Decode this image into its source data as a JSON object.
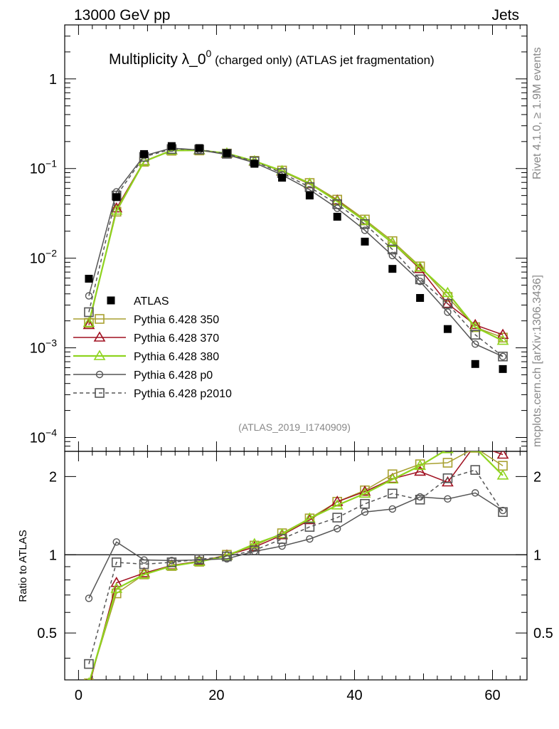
{
  "header": {
    "left": "13000 GeV pp",
    "right": "Jets"
  },
  "side": {
    "rivet": "Rivet 4.1.0, ≥ 1.9M events",
    "mcplots": "mcplots.cern.ch [arXiv:1306.3436]"
  },
  "chart_data": {
    "type": "line",
    "title": "Multiplicity λ_0",
    "title_sup": "0",
    "title_suffix": " (charged only) (ATLAS jet fragmentation)",
    "watermark": "(ATLAS_2019_I1740909)",
    "ratio_ylabel": "Ratio to ATLAS",
    "xlim": [
      -2,
      65
    ],
    "ylim": [
      7e-05,
      4
    ],
    "ratio_ylim": [
      0.33,
      2.5
    ],
    "yscale": "log",
    "ratio_yscale": "log",
    "x_ticks": [
      0,
      20,
      40,
      60
    ],
    "y_tick_labels": [
      {
        "value": 1,
        "base": "1",
        "exp": ""
      },
      {
        "value": 0.1,
        "base": "10",
        "exp": "−1"
      },
      {
        "value": 0.01,
        "base": "10",
        "exp": "−2"
      },
      {
        "value": 0.001,
        "base": "10",
        "exp": "−3"
      },
      {
        "value": 0.0001,
        "base": "10",
        "exp": "−4"
      }
    ],
    "ratio_tick_labels": [
      {
        "value": 0.5,
        "label": "0.5"
      },
      {
        "value": 1,
        "label": "1"
      },
      {
        "value": 2,
        "label": "2"
      }
    ],
    "x": [
      1.5,
      5.5,
      9.5,
      13.5,
      17.5,
      21.5,
      25.5,
      29.5,
      33.5,
      37.5,
      41.5,
      45.5,
      49.5,
      53.5,
      57.5,
      61.5
    ],
    "data": {
      "name": "ATLAS",
      "values": [
        0.0059,
        0.048,
        0.145,
        0.178,
        0.169,
        0.148,
        0.113,
        0.079,
        0.05,
        0.029,
        0.0153,
        0.0076,
        0.0036,
        0.00162,
        0.00066,
        0.00058
      ]
    },
    "series": [
      {
        "name": "Pythia 6.428 350",
        "color": "#a8a030",
        "marker": "square",
        "dashed": false,
        "values": [
          0.0019,
          0.033,
          0.119,
          0.158,
          0.159,
          0.147,
          0.122,
          0.095,
          0.069,
          0.045,
          0.027,
          0.0155,
          0.0081,
          0.0037,
          0.0017,
          0.0013
        ],
        "ratio": [
          0.32,
          0.71,
          0.84,
          0.905,
          0.94,
          1.0,
          1.085,
          1.21,
          1.38,
          1.6,
          1.77,
          2.04,
          2.23,
          2.26,
          2.58,
          2.2
        ]
      },
      {
        "name": "Pythia 6.428 370",
        "color": "#a01020",
        "marker": "triangle",
        "dashed": false,
        "values": [
          0.0018,
          0.036,
          0.121,
          0.16,
          0.16,
          0.147,
          0.12,
          0.093,
          0.067,
          0.044,
          0.026,
          0.0148,
          0.0076,
          0.0031,
          0.0018,
          0.0014
        ],
        "ratio": [
          0.31,
          0.78,
          0.85,
          0.91,
          0.945,
          0.995,
          1.07,
          1.19,
          1.36,
          1.6,
          1.75,
          1.96,
          2.09,
          1.9,
          2.65,
          2.43
        ]
      },
      {
        "name": "Pythia 6.428 380",
        "color": "#8fd41f",
        "marker": "triangle",
        "dashed": false,
        "values": [
          0.0019,
          0.034,
          0.12,
          0.159,
          0.16,
          0.148,
          0.121,
          0.094,
          0.068,
          0.043,
          0.026,
          0.0148,
          0.0079,
          0.0041,
          0.0017,
          0.0012
        ],
        "ratio": [
          0.32,
          0.74,
          0.84,
          0.905,
          0.94,
          0.99,
          1.1,
          1.2,
          1.38,
          1.55,
          1.72,
          1.95,
          2.2,
          2.55,
          2.58,
          2.02
        ]
      },
      {
        "name": "Pythia 6.428 p0",
        "color": "#555555",
        "marker": "circle",
        "dashed": false,
        "values": [
          0.0038,
          0.055,
          0.139,
          0.169,
          0.161,
          0.143,
          0.116,
          0.085,
          0.058,
          0.036,
          0.0205,
          0.0107,
          0.0055,
          0.0025,
          0.0011,
          0.0008
        ],
        "ratio": [
          0.68,
          1.12,
          0.955,
          0.95,
          0.955,
          0.965,
          1.03,
          1.08,
          1.15,
          1.26,
          1.46,
          1.5,
          1.67,
          1.64,
          1.73,
          1.48
        ]
      },
      {
        "name": "Pythia 6.428 p2010",
        "color": "#555555",
        "marker": "square",
        "dashed": true,
        "values": [
          0.0025,
          0.05,
          0.135,
          0.165,
          0.163,
          0.146,
          0.12,
          0.089,
          0.062,
          0.04,
          0.024,
          0.0125,
          0.0058,
          0.0031,
          0.0014,
          0.0008
        ],
        "ratio": [
          0.38,
          0.935,
          0.92,
          0.935,
          0.96,
          0.985,
          1.04,
          1.15,
          1.28,
          1.39,
          1.57,
          1.72,
          1.63,
          1.97,
          2.12,
          1.46
        ]
      }
    ]
  }
}
